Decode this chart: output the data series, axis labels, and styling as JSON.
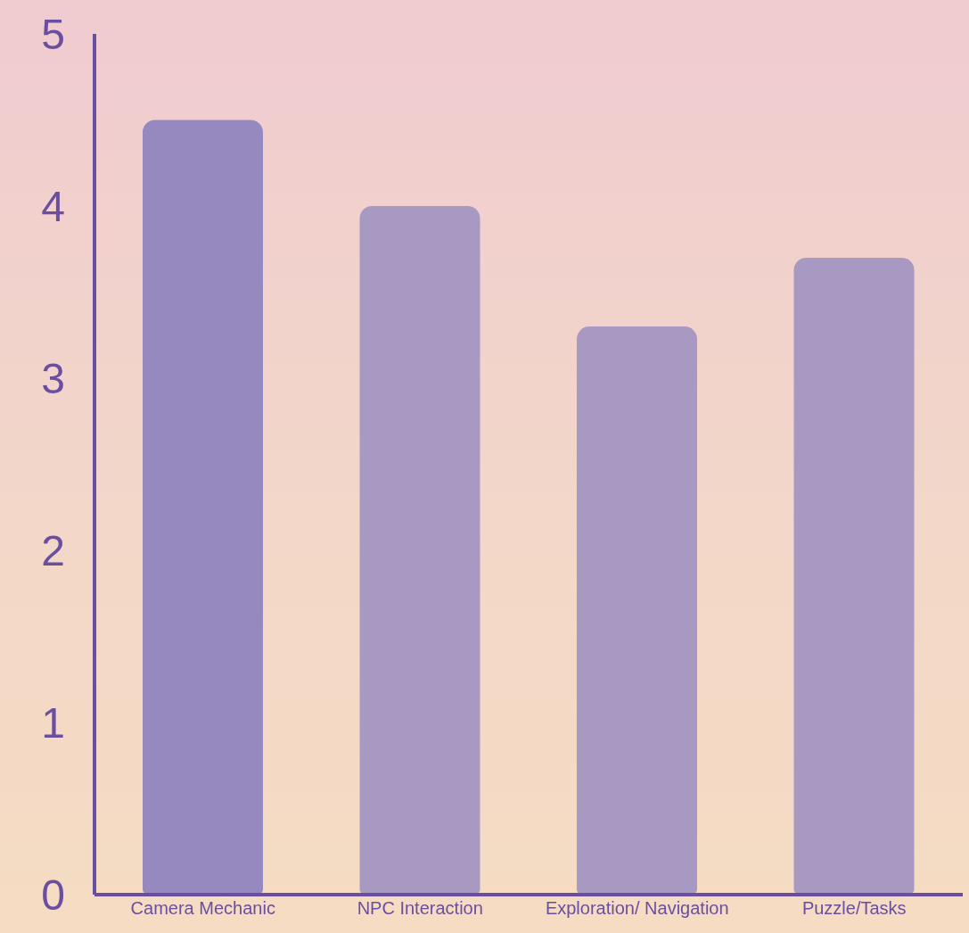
{
  "chart_data": {
    "type": "bar",
    "categories": [
      "Camera Mechanic",
      "NPC Interaction",
      "Exploration/ Navigation",
      "Puzzle/Tasks"
    ],
    "values": [
      4.5,
      4.0,
      3.3,
      3.7
    ],
    "colors": [
      "#9689c0",
      "#a899c3",
      "#a899c3",
      "#a899c3"
    ],
    "ylim": [
      0,
      5
    ],
    "yticks": [
      0,
      1,
      2,
      3,
      4,
      5
    ],
    "grid": false,
    "legend": false
  }
}
